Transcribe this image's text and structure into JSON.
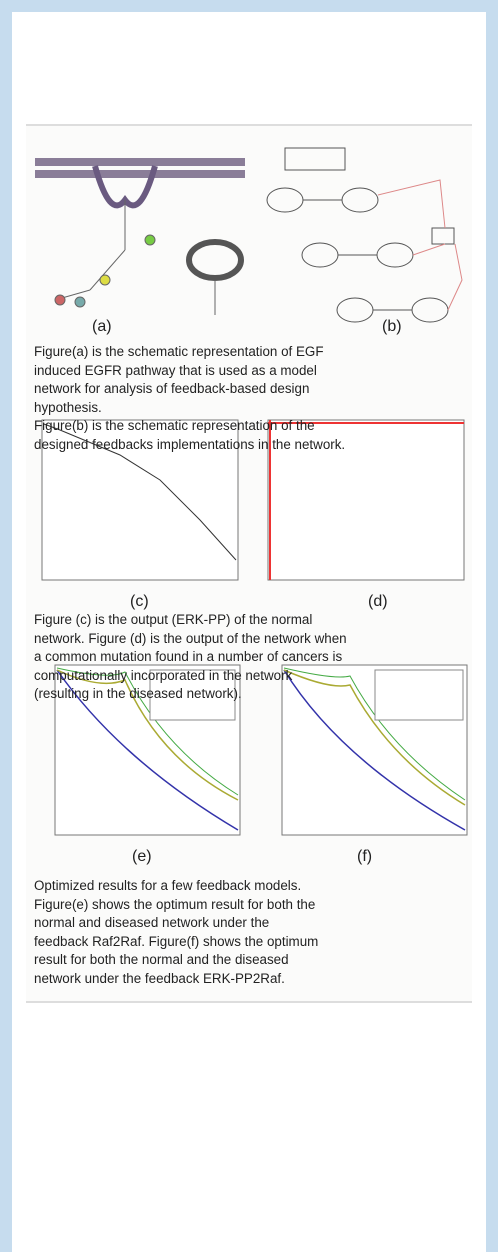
{
  "figures": {
    "top": {
      "label_a": "(a)",
      "label_b": "(b)",
      "caption": [
        "Figure(a) is the schematic representation of EGF",
        "induced EGFR pathway that is used as a model",
        "network for analysis of feedback-based design",
        "hypothesis.",
        "Figure(b) is the schematic representation of the",
        "designed feedbacks implementations in the network."
      ]
    },
    "middle": {
      "label_c": "(c)",
      "label_d": "(d)",
      "caption": [
        "Figure (c) is the output (ERK-PP) of the normal",
        "network. Figure (d) is the output of the network when",
        "a common mutation found in a number of cancers is",
        "computationally incorporated in the network",
        "(resulting in the diseased network)."
      ]
    },
    "bottom": {
      "label_e": "(e)",
      "label_f": "(f)",
      "caption": [
        "Optimized results for a few feedback models.",
        "Figure(e) shows the optimum result for both the",
        "normal and diseased network under the",
        "feedback Raf2Raf. Figure(f) shows the optimum",
        "result for both the normal and  the diseased",
        "network under the feedback ERK-PP2Raf."
      ]
    }
  }
}
